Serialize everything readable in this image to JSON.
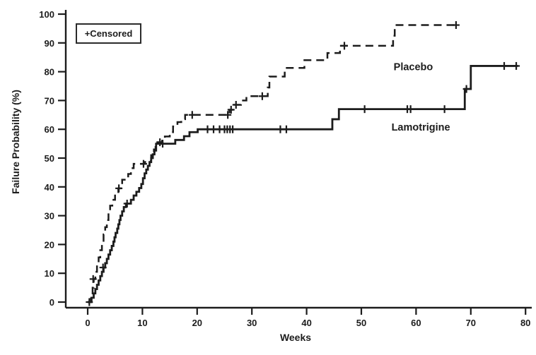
{
  "chart_data": {
    "type": "line",
    "subtype": "kaplan-meier-step",
    "title": "",
    "xlabel": "Weeks",
    "ylabel": "Failure Probability (%)",
    "xlim": [
      0,
      80
    ],
    "ylim": [
      0,
      100
    ],
    "x_ticks": [
      0,
      10,
      20,
      30,
      40,
      50,
      60,
      70,
      80
    ],
    "y_ticks": [
      0,
      10,
      20,
      30,
      40,
      50,
      60,
      70,
      80,
      90,
      100
    ],
    "grid": false,
    "line_color": "#1c1c1c",
    "legend": {
      "label": "+Censored",
      "position": "top-left"
    },
    "series": [
      {
        "name": "Placebo",
        "line_style": "dashed",
        "label_anchor": {
          "week": 55.9,
          "pct": 80.5
        },
        "points": [
          [
            0,
            0
          ],
          [
            0.6,
            2
          ],
          [
            0.9,
            5
          ],
          [
            1.1,
            8
          ],
          [
            1.4,
            10.5
          ],
          [
            1.7,
            13
          ],
          [
            2.0,
            15.5
          ],
          [
            2.3,
            18
          ],
          [
            2.6,
            20.5
          ],
          [
            2.9,
            23.5
          ],
          [
            3.2,
            26
          ],
          [
            3.5,
            28.5
          ],
          [
            3.8,
            31
          ],
          [
            4.1,
            33.5
          ],
          [
            4.5,
            35.5
          ],
          [
            5.0,
            37.5
          ],
          [
            5.6,
            39.5
          ],
          [
            6.3,
            42.5
          ],
          [
            7.4,
            44.5
          ],
          [
            7.9,
            46.5
          ],
          [
            8.4,
            48
          ],
          [
            10.5,
            49
          ],
          [
            11.6,
            51
          ],
          [
            12.1,
            53
          ],
          [
            12.4,
            55.5
          ],
          [
            13.6,
            56.5
          ],
          [
            14.1,
            57.5
          ],
          [
            15.0,
            59
          ],
          [
            15.6,
            61
          ],
          [
            16.4,
            62.5
          ],
          [
            17.1,
            63.5
          ],
          [
            17.8,
            65
          ],
          [
            25.9,
            66.8
          ],
          [
            26.8,
            68.5
          ],
          [
            28.0,
            70
          ],
          [
            29.0,
            71.5
          ],
          [
            32.9,
            74.5
          ],
          [
            33.2,
            78.3
          ],
          [
            36.0,
            81.3
          ],
          [
            39.6,
            84
          ],
          [
            43.8,
            86.5
          ],
          [
            46.1,
            89
          ],
          [
            55.8,
            92.5
          ],
          [
            56.1,
            96.2
          ]
        ],
        "end_week": 67.5,
        "censored": [
          [
            0.3,
            0
          ],
          [
            1.0,
            8
          ],
          [
            5.7,
            39.5
          ],
          [
            10.2,
            48
          ],
          [
            13.2,
            55.5
          ],
          [
            19.1,
            65
          ],
          [
            25.6,
            65
          ],
          [
            26.2,
            66.8
          ],
          [
            27.1,
            68.5
          ],
          [
            31.9,
            71.5
          ],
          [
            46.9,
            89
          ],
          [
            67.3,
            96.2
          ]
        ]
      },
      {
        "name": "Lamotrigine",
        "line_style": "solid",
        "label_anchor": {
          "week": 55.5,
          "pct": 59.5
        },
        "points": [
          [
            0,
            0
          ],
          [
            0.7,
            1.5
          ],
          [
            1.1,
            3
          ],
          [
            1.4,
            4.5
          ],
          [
            1.7,
            6
          ],
          [
            2.0,
            7.5
          ],
          [
            2.3,
            9
          ],
          [
            2.6,
            10.5
          ],
          [
            2.9,
            12
          ],
          [
            3.2,
            13.5
          ],
          [
            3.5,
            15
          ],
          [
            3.8,
            16.5
          ],
          [
            4.1,
            18
          ],
          [
            4.4,
            19.5
          ],
          [
            4.7,
            21
          ],
          [
            4.9,
            22.5
          ],
          [
            5.1,
            24
          ],
          [
            5.4,
            25.5
          ],
          [
            5.6,
            27
          ],
          [
            5.8,
            28.5
          ],
          [
            6.0,
            30
          ],
          [
            6.3,
            31.5
          ],
          [
            6.6,
            33
          ],
          [
            7.0,
            34.2
          ],
          [
            7.9,
            35.5
          ],
          [
            8.4,
            37
          ],
          [
            8.9,
            38.3
          ],
          [
            9.4,
            39.6
          ],
          [
            9.8,
            41
          ],
          [
            10.1,
            43
          ],
          [
            10.4,
            44.7
          ],
          [
            10.7,
            46
          ],
          [
            11.0,
            47.3
          ],
          [
            11.3,
            48.6
          ],
          [
            11.6,
            50
          ],
          [
            11.9,
            51.3
          ],
          [
            12.2,
            52.6
          ],
          [
            12.5,
            55
          ],
          [
            16.0,
            56.3
          ],
          [
            17.6,
            57.6
          ],
          [
            18.6,
            59
          ],
          [
            20.1,
            60
          ],
          [
            44.7,
            63.5
          ],
          [
            45.9,
            67
          ],
          [
            68.9,
            74
          ],
          [
            70.0,
            82
          ]
        ],
        "end_week": 78.6,
        "censored": [
          [
            2.8,
            12
          ],
          [
            7.2,
            34.2
          ],
          [
            13.7,
            55
          ],
          [
            21.9,
            60
          ],
          [
            23.0,
            60
          ],
          [
            24.1,
            60
          ],
          [
            25.0,
            60
          ],
          [
            25.5,
            60
          ],
          [
            26.0,
            60
          ],
          [
            26.5,
            60
          ],
          [
            35.2,
            60
          ],
          [
            36.3,
            60
          ],
          [
            50.6,
            67
          ],
          [
            58.4,
            67
          ],
          [
            59.0,
            67
          ],
          [
            65.2,
            67
          ],
          [
            69.2,
            74
          ],
          [
            76.1,
            82
          ],
          [
            78.3,
            82
          ]
        ]
      }
    ]
  }
}
